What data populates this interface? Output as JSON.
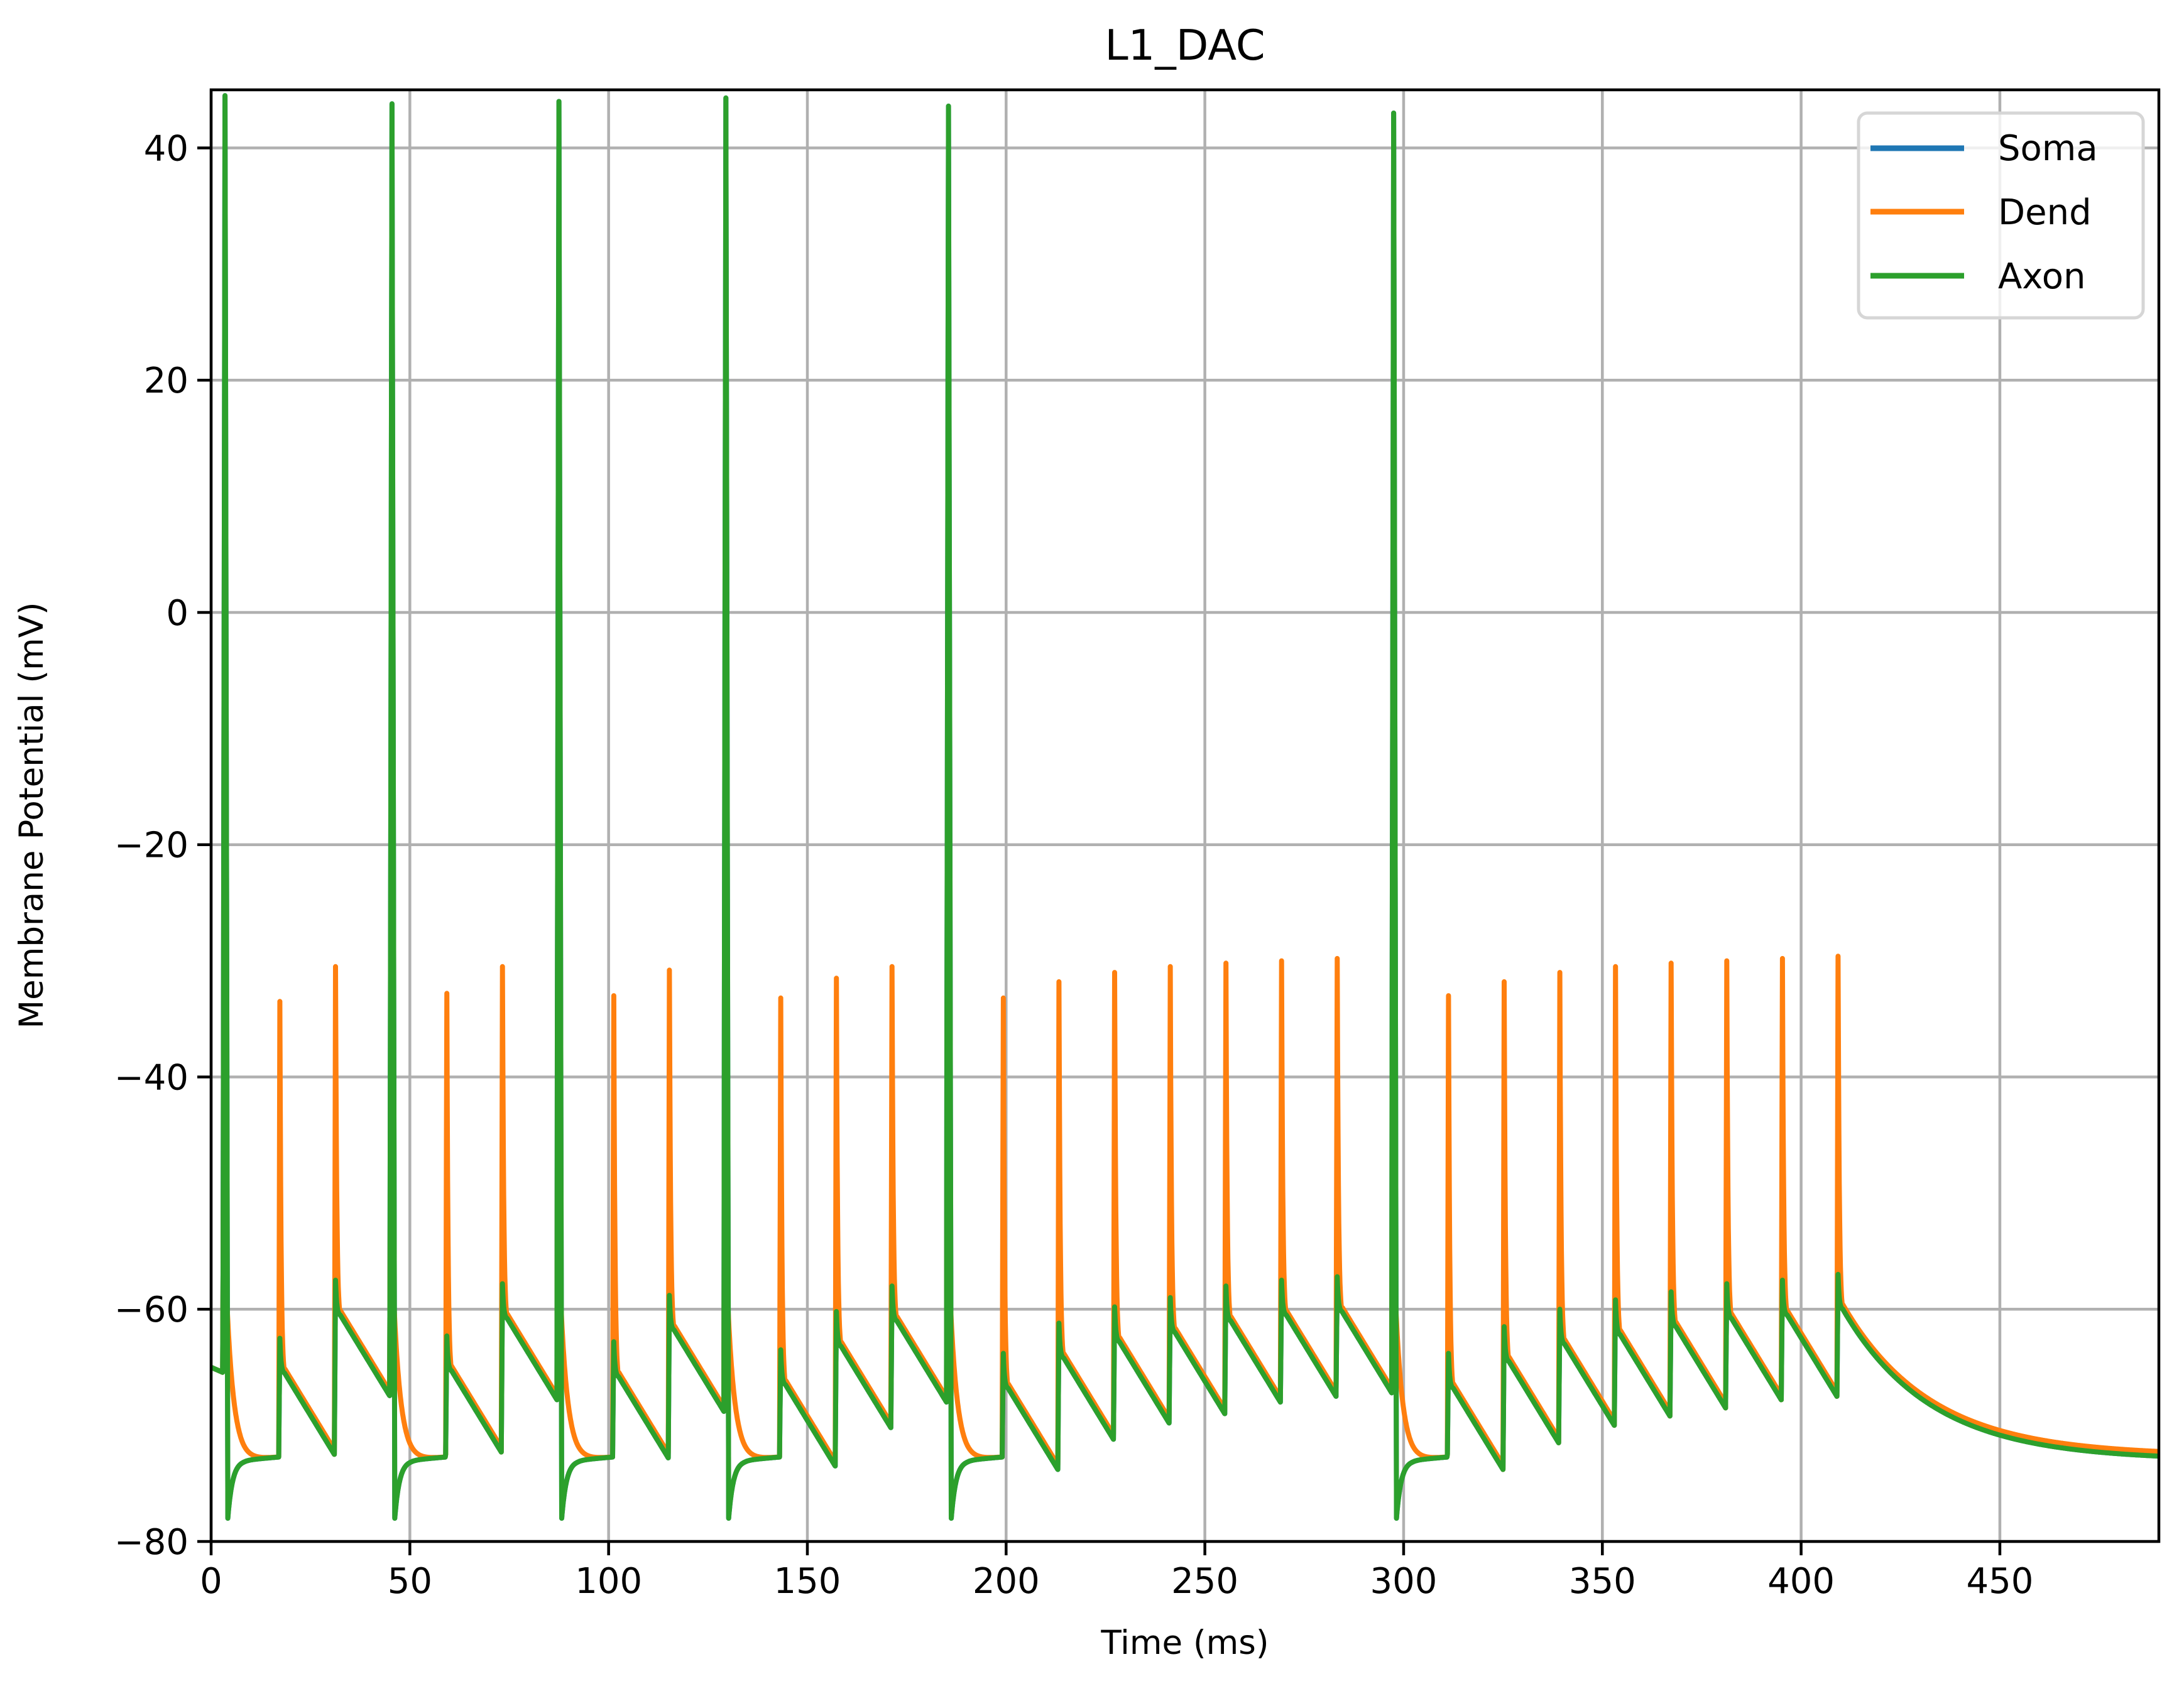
{
  "chart_data": {
    "type": "line",
    "title": "L1_DAC",
    "xlabel": "Time (ms)",
    "ylabel": "Membrane Potential (mV)",
    "xlim": [
      0,
      490
    ],
    "ylim": [
      -80,
      45
    ],
    "xticks": [
      0,
      50,
      100,
      150,
      200,
      250,
      300,
      350,
      400,
      450
    ],
    "xtick_labels": [
      "0",
      "50",
      "100",
      "150",
      "200",
      "250",
      "300",
      "350",
      "400",
      "450"
    ],
    "yticks": [
      -80,
      -60,
      -40,
      -20,
      0,
      20,
      40
    ],
    "ytick_labels": [
      "−80",
      "−60",
      "−40",
      "−20",
      "0",
      "20",
      "40"
    ],
    "grid": true,
    "legend": {
      "position": "upper right",
      "entries": [
        {
          "name": "Soma",
          "color": "#1f77b4"
        },
        {
          "name": "Dend",
          "color": "#ff7f0e"
        },
        {
          "name": "Axon",
          "color": "#2ca02c"
        }
      ]
    },
    "resting_potential_mV": -65,
    "final_potential_mV": -73,
    "stimulus_events": [
      {
        "t": 3,
        "dend_peak": -29.5,
        "axon_spike": true,
        "axon_peak": 44.5
      },
      {
        "t": 17,
        "dend_peak": -33.5,
        "axon_spike": false,
        "axon_peak": -62.5
      },
      {
        "t": 31,
        "dend_peak": -30.5,
        "axon_spike": false,
        "axon_peak": -57.5
      },
      {
        "t": 45,
        "dend_peak": -28.8,
        "axon_spike": true,
        "axon_peak": 43.8
      },
      {
        "t": 59,
        "dend_peak": -32.8,
        "axon_spike": false,
        "axon_peak": -62.3
      },
      {
        "t": 73,
        "dend_peak": -30.5,
        "axon_spike": false,
        "axon_peak": -57.8
      },
      {
        "t": 87,
        "dend_peak": -29.2,
        "axon_spike": true,
        "axon_peak": 44.0
      },
      {
        "t": 101,
        "dend_peak": -33.0,
        "axon_spike": false,
        "axon_peak": -62.8
      },
      {
        "t": 115,
        "dend_peak": -30.8,
        "axon_spike": false,
        "axon_peak": -58.8
      },
      {
        "t": 129,
        "dend_peak": -29.5,
        "axon_spike": true,
        "axon_peak": 44.3
      },
      {
        "t": 143,
        "dend_peak": -33.2,
        "axon_spike": false,
        "axon_peak": -63.5
      },
      {
        "t": 157,
        "dend_peak": -31.5,
        "axon_spike": false,
        "axon_peak": -60.2
      },
      {
        "t": 171,
        "dend_peak": -30.5,
        "axon_spike": false,
        "axon_peak": -58.0
      },
      {
        "t": 185,
        "dend_peak": -29.8,
        "axon_spike": true,
        "axon_peak": 43.6
      },
      {
        "t": 199,
        "dend_peak": -33.2,
        "axon_spike": false,
        "axon_peak": -63.8
      },
      {
        "t": 213,
        "dend_peak": -31.8,
        "axon_spike": false,
        "axon_peak": -61.2
      },
      {
        "t": 227,
        "dend_peak": -31.0,
        "axon_spike": false,
        "axon_peak": -59.8
      },
      {
        "t": 241,
        "dend_peak": -30.5,
        "axon_spike": false,
        "axon_peak": -59.0
      },
      {
        "t": 255,
        "dend_peak": -30.2,
        "axon_spike": false,
        "axon_peak": -58.0
      },
      {
        "t": 269,
        "dend_peak": -30.0,
        "axon_spike": false,
        "axon_peak": -57.5
      },
      {
        "t": 283,
        "dend_peak": -29.8,
        "axon_spike": false,
        "axon_peak": -57.2
      },
      {
        "t": 297,
        "dend_peak": -29.5,
        "axon_spike": true,
        "axon_peak": 43.0
      },
      {
        "t": 311,
        "dend_peak": -33.0,
        "axon_spike": false,
        "axon_peak": -63.8
      },
      {
        "t": 325,
        "dend_peak": -31.8,
        "axon_spike": false,
        "axon_peak": -61.5
      },
      {
        "t": 339,
        "dend_peak": -31.0,
        "axon_spike": false,
        "axon_peak": -60.0
      },
      {
        "t": 353,
        "dend_peak": -30.5,
        "axon_spike": false,
        "axon_peak": -59.2
      },
      {
        "t": 367,
        "dend_peak": -30.2,
        "axon_spike": false,
        "axon_peak": -58.5
      },
      {
        "t": 381,
        "dend_peak": -30.0,
        "axon_spike": false,
        "axon_peak": -57.8
      },
      {
        "t": 395,
        "dend_peak": -29.8,
        "axon_spike": false,
        "axon_peak": -57.5
      },
      {
        "t": 409,
        "dend_peak": -29.6,
        "axon_spike": false,
        "axon_peak": -57.0
      }
    ],
    "series": [
      {
        "name": "Soma",
        "color": "#1f77b4",
        "note": "largely overlapped by Axon trace"
      },
      {
        "name": "Dend",
        "color": "#ff7f0e",
        "note": "sharp transients to ~-30 mV at each stimulus"
      },
      {
        "name": "Axon",
        "color": "#2ca02c",
        "note": "full action potentials reaching ~+44 mV at 6 events"
      }
    ]
  }
}
